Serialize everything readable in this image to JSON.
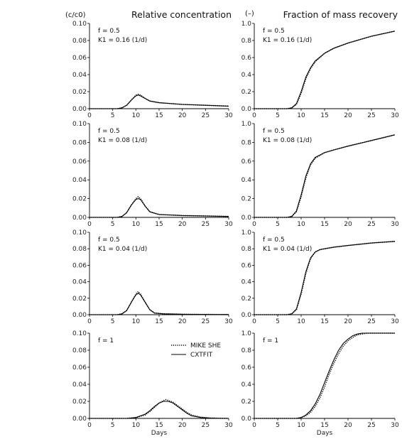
{
  "headers": {
    "left_unit": "(c/c0)",
    "left_title": "Relative concentration",
    "right_unit": "(–)",
    "right_title": "Fraction of mass recovery"
  },
  "legend": [
    {
      "label": "MIKE SHE",
      "style": "dotted"
    },
    {
      "label": "CXTFIT",
      "style": "solid"
    }
  ],
  "chart_data": [
    {
      "type": "line",
      "panel": "row1-left",
      "annotation": [
        "f = 0.5",
        "K1 = 0.16 (1/d)"
      ],
      "xlabel": "",
      "ylabel": "(c/c0)",
      "xlim": [
        0,
        30
      ],
      "ylim": [
        0,
        0.1
      ],
      "x_ticks": [
        0,
        5,
        10,
        15,
        20,
        25,
        30
      ],
      "y_ticks": [
        "0.00",
        "0.02",
        "0.04",
        "0.06",
        "0.08",
        "0.10"
      ],
      "x": [
        0,
        6,
        7,
        8,
        9,
        10,
        10.5,
        11,
        12,
        13,
        15,
        20,
        25,
        30
      ],
      "series": [
        {
          "name": "MIKE SHE",
          "values": [
            0,
            0,
            0.001,
            0.004,
            0.01,
            0.016,
            0.017,
            0.016,
            0.012,
            0.009,
            0.007,
            0.005,
            0.004,
            0.003
          ]
        },
        {
          "name": "CXTFIT",
          "values": [
            0,
            0,
            0.001,
            0.004,
            0.01,
            0.015,
            0.016,
            0.015,
            0.012,
            0.009,
            0.007,
            0.005,
            0.004,
            0.003
          ]
        }
      ]
    },
    {
      "type": "line",
      "panel": "row1-right",
      "annotation": [
        "f = 0.5",
        "K1 = 0.16 (1/d)"
      ],
      "xlabel": "",
      "ylabel": "(–)",
      "xlim": [
        0,
        30
      ],
      "ylim": [
        0,
        1.0
      ],
      "x_ticks": [
        0,
        5,
        10,
        15,
        20,
        25,
        30
      ],
      "y_ticks": [
        "0.0",
        "0.2",
        "0.4",
        "0.6",
        "0.8",
        "1.0"
      ],
      "x": [
        0,
        7,
        8,
        9,
        10,
        11,
        12,
        13,
        15,
        17,
        20,
        25,
        30
      ],
      "series": [
        {
          "name": "MIKE SHE",
          "values": [
            0,
            0,
            0.01,
            0.05,
            0.18,
            0.35,
            0.47,
            0.55,
            0.65,
            0.71,
            0.77,
            0.85,
            0.91
          ]
        },
        {
          "name": "CXTFIT",
          "values": [
            0,
            0,
            0.01,
            0.06,
            0.2,
            0.37,
            0.48,
            0.56,
            0.65,
            0.71,
            0.77,
            0.85,
            0.91
          ]
        }
      ]
    },
    {
      "type": "line",
      "panel": "row2-left",
      "annotation": [
        "f = 0.5",
        "K1 = 0.08 (1/d)"
      ],
      "xlabel": "",
      "ylabel": "",
      "xlim": [
        0,
        30
      ],
      "ylim": [
        0,
        0.1
      ],
      "x_ticks": [
        0,
        5,
        10,
        15,
        20,
        25,
        30
      ],
      "y_ticks": [
        "0.00",
        "0.02",
        "0.04",
        "0.06",
        "0.08",
        "0.10"
      ],
      "x": [
        0,
        6,
        7,
        8,
        9,
        10,
        10.5,
        11,
        12,
        13,
        15,
        20,
        25,
        30
      ],
      "series": [
        {
          "name": "MIKE SHE",
          "values": [
            0,
            0,
            0.001,
            0.005,
            0.013,
            0.02,
            0.022,
            0.02,
            0.012,
            0.006,
            0.003,
            0.002,
            0.0015,
            0.001
          ]
        },
        {
          "name": "CXTFIT",
          "values": [
            0,
            0,
            0.001,
            0.005,
            0.013,
            0.019,
            0.02,
            0.019,
            0.012,
            0.006,
            0.003,
            0.002,
            0.0015,
            0.001
          ]
        }
      ]
    },
    {
      "type": "line",
      "panel": "row2-right",
      "annotation": [
        "f = 0.5",
        "K1 = 0.08 (1/d)"
      ],
      "xlabel": "",
      "ylabel": "",
      "xlim": [
        0,
        30
      ],
      "ylim": [
        0,
        1.0
      ],
      "x_ticks": [
        0,
        5,
        10,
        15,
        20,
        25,
        30
      ],
      "y_ticks": [
        "0.0",
        "0.2",
        "0.4",
        "0.6",
        "0.8",
        "1.0"
      ],
      "x": [
        0,
        7,
        8,
        9,
        10,
        11,
        12,
        13,
        15,
        17,
        20,
        25,
        30
      ],
      "series": [
        {
          "name": "MIKE SHE",
          "values": [
            0,
            0,
            0.01,
            0.06,
            0.22,
            0.42,
            0.56,
            0.63,
            0.69,
            0.72,
            0.76,
            0.82,
            0.88
          ]
        },
        {
          "name": "CXTFIT",
          "values": [
            0,
            0,
            0.01,
            0.07,
            0.24,
            0.44,
            0.57,
            0.64,
            0.69,
            0.72,
            0.76,
            0.82,
            0.88
          ]
        }
      ]
    },
    {
      "type": "line",
      "panel": "row3-left",
      "annotation": [
        "f = 0.5",
        "K1 = 0.04 (1/d)"
      ],
      "xlabel": "",
      "ylabel": "",
      "xlim": [
        0,
        30
      ],
      "ylim": [
        0,
        0.1
      ],
      "x_ticks": [
        0,
        5,
        10,
        15,
        20,
        25,
        30
      ],
      "y_ticks": [
        "0.00",
        "0.02",
        "0.04",
        "0.06",
        "0.08",
        "0.10"
      ],
      "x": [
        0,
        6,
        7,
        8,
        9,
        10,
        10.5,
        11,
        12,
        13,
        14,
        16,
        20,
        25,
        30
      ],
      "series": [
        {
          "name": "MIKE SHE",
          "values": [
            0,
            0,
            0.001,
            0.005,
            0.015,
            0.025,
            0.028,
            0.025,
            0.015,
            0.006,
            0.002,
            0.001,
            0.0005,
            0.0003,
            0.0002
          ]
        },
        {
          "name": "CXTFIT",
          "values": [
            0,
            0,
            0.001,
            0.005,
            0.015,
            0.024,
            0.026,
            0.024,
            0.015,
            0.006,
            0.002,
            0.001,
            0.0005,
            0.0003,
            0.0002
          ]
        }
      ]
    },
    {
      "type": "line",
      "panel": "row3-right",
      "annotation": [
        "f = 0.5",
        "K1 = 0.04 (1/d)"
      ],
      "xlabel": "",
      "ylabel": "",
      "xlim": [
        0,
        30
      ],
      "ylim": [
        0,
        1.0
      ],
      "x_ticks": [
        0,
        5,
        10,
        15,
        20,
        25,
        30
      ],
      "y_ticks": [
        "0.0",
        "0.2",
        "0.4",
        "0.6",
        "0.8",
        "1.0"
      ],
      "x": [
        0,
        7,
        8,
        9,
        10,
        11,
        12,
        13,
        14,
        15,
        17,
        20,
        25,
        30
      ],
      "series": [
        {
          "name": "MIKE SHE",
          "values": [
            0,
            0,
            0.01,
            0.06,
            0.25,
            0.5,
            0.68,
            0.76,
            0.79,
            0.8,
            0.82,
            0.84,
            0.87,
            0.89
          ]
        },
        {
          "name": "CXTFIT",
          "values": [
            0,
            0,
            0.01,
            0.07,
            0.27,
            0.52,
            0.69,
            0.76,
            0.79,
            0.8,
            0.82,
            0.84,
            0.87,
            0.89
          ]
        }
      ]
    },
    {
      "type": "line",
      "panel": "row4-left",
      "annotation": [
        "f = 1"
      ],
      "xlabel": "Days",
      "ylabel": "",
      "xlim": [
        0,
        30
      ],
      "ylim": [
        0,
        0.1
      ],
      "x_ticks": [
        0,
        5,
        10,
        15,
        20,
        25,
        30
      ],
      "y_ticks": [
        "0.00",
        "0.02",
        "0.04",
        "0.06",
        "0.08",
        "0.10"
      ],
      "x": [
        0,
        8,
        10,
        12,
        13,
        14,
        15,
        16,
        16.5,
        17,
        18,
        19,
        20,
        21,
        22,
        24,
        26,
        28,
        30
      ],
      "series": [
        {
          "name": "MIKE SHE",
          "values": [
            0,
            0,
            0.001,
            0.004,
            0.008,
            0.013,
            0.018,
            0.021,
            0.022,
            0.021,
            0.019,
            0.015,
            0.011,
            0.007,
            0.004,
            0.0015,
            0.0005,
            0.0002,
            0
          ]
        },
        {
          "name": "CXTFIT",
          "values": [
            0,
            0,
            0.001,
            0.005,
            0.009,
            0.014,
            0.018,
            0.02,
            0.02,
            0.02,
            0.018,
            0.014,
            0.01,
            0.006,
            0.003,
            0.001,
            0.0003,
            0.0001,
            0
          ]
        }
      ]
    },
    {
      "type": "line",
      "panel": "row4-right",
      "annotation": [
        "f = 1"
      ],
      "xlabel": "Days",
      "ylabel": "",
      "xlim": [
        0,
        30
      ],
      "ylim": [
        0,
        1.0
      ],
      "x_ticks": [
        0,
        5,
        10,
        15,
        20,
        25,
        30
      ],
      "y_ticks": [
        "0.0",
        "0.2",
        "0.4",
        "0.6",
        "0.8",
        "1.0"
      ],
      "x": [
        0,
        9,
        10,
        11,
        12,
        13,
        14,
        15,
        16,
        17,
        18,
        19,
        20,
        21,
        22,
        23,
        24,
        25,
        26,
        30
      ],
      "series": [
        {
          "name": "MIKE SHE",
          "values": [
            0,
            0,
            0.01,
            0.03,
            0.07,
            0.14,
            0.24,
            0.37,
            0.52,
            0.65,
            0.76,
            0.85,
            0.91,
            0.95,
            0.98,
            0.99,
            1.0,
            1.0,
            1.0,
            1.0
          ]
        },
        {
          "name": "CXTFIT",
          "values": [
            0,
            0,
            0.01,
            0.04,
            0.09,
            0.17,
            0.28,
            0.42,
            0.56,
            0.69,
            0.8,
            0.88,
            0.93,
            0.97,
            0.99,
            1.0,
            1.0,
            1.0,
            1.0,
            1.0
          ]
        }
      ]
    }
  ]
}
